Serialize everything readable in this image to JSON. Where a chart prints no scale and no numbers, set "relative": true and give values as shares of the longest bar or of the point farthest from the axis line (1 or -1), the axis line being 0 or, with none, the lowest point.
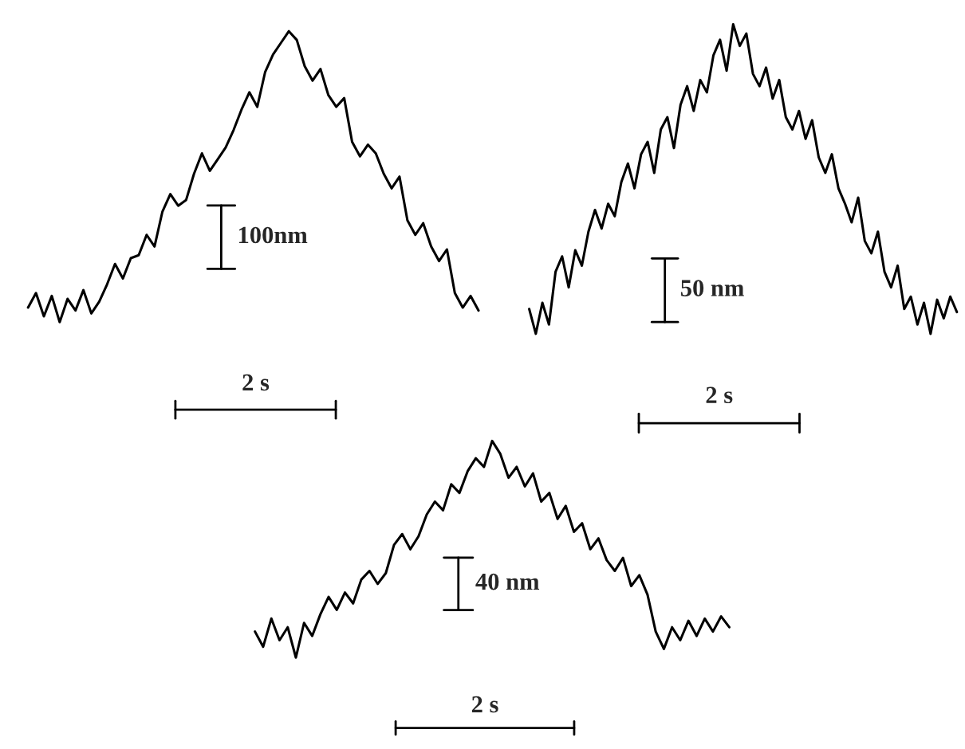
{
  "chart_data": [
    {
      "type": "line",
      "relative": true,
      "categories": [
        null,
        null,
        null,
        null,
        null,
        null,
        null,
        null,
        null,
        null,
        null,
        null,
        null,
        null,
        null,
        null,
        null,
        null,
        null,
        null,
        null,
        null,
        null,
        null,
        null,
        null,
        null,
        null,
        null,
        null,
        null,
        null,
        null,
        null,
        null,
        null,
        null,
        null,
        null,
        null,
        null,
        null,
        null,
        null,
        null,
        null,
        null,
        null,
        null,
        null,
        null,
        null,
        null,
        null,
        null,
        null,
        null,
        null
      ],
      "series": [
        {
          "color": "#000000",
          "values": [
            0.05,
            0.1,
            0.02,
            0.09,
            0.0,
            0.08,
            0.04,
            0.11,
            0.03,
            0.07,
            0.13,
            0.2,
            0.15,
            0.22,
            0.23,
            0.3,
            0.26,
            0.38,
            0.44,
            0.4,
            0.42,
            0.51,
            0.58,
            0.52,
            0.56,
            0.6,
            0.66,
            0.73,
            0.79,
            0.74,
            0.86,
            0.92,
            0.96,
            1.0,
            0.97,
            0.88,
            0.83,
            0.87,
            0.78,
            0.74,
            0.77,
            0.62,
            0.57,
            0.61,
            0.58,
            0.51,
            0.46,
            0.5,
            0.35,
            0.3,
            0.34,
            0.26,
            0.21,
            0.25,
            0.1,
            0.05,
            0.09,
            0.04
          ]
        }
      ],
      "annotations": [
        "100nm",
        "2 s"
      ]
    },
    {
      "type": "line",
      "relative": true,
      "categories": [
        null,
        null,
        null,
        null,
        null,
        null,
        null,
        null,
        null,
        null,
        null,
        null,
        null,
        null,
        null,
        null,
        null,
        null,
        null,
        null,
        null,
        null,
        null,
        null,
        null,
        null,
        null,
        null,
        null,
        null,
        null,
        null,
        null,
        null,
        null,
        null,
        null,
        null,
        null,
        null,
        null,
        null,
        null,
        null,
        null,
        null,
        null,
        null,
        null,
        null,
        null,
        null,
        null,
        null,
        null,
        null,
        null,
        null,
        null,
        null,
        null,
        null,
        null,
        null,
        null,
        null
      ],
      "series": [
        {
          "color": "#000000",
          "values": [
            0.08,
            0.0,
            0.1,
            0.03,
            0.2,
            0.25,
            0.15,
            0.27,
            0.22,
            0.33,
            0.4,
            0.34,
            0.42,
            0.38,
            0.49,
            0.55,
            0.47,
            0.58,
            0.62,
            0.52,
            0.66,
            0.7,
            0.6,
            0.74,
            0.8,
            0.72,
            0.82,
            0.78,
            0.9,
            0.95,
            0.85,
            1.0,
            0.93,
            0.97,
            0.84,
            0.8,
            0.86,
            0.76,
            0.82,
            0.7,
            0.66,
            0.72,
            0.63,
            0.69,
            0.57,
            0.52,
            0.58,
            0.47,
            0.42,
            0.36,
            0.44,
            0.3,
            0.26,
            0.33,
            0.2,
            0.15,
            0.22,
            0.08,
            0.12,
            0.03,
            0.1,
            0.0,
            0.11,
            0.05,
            0.12,
            0.07
          ]
        }
      ],
      "annotations": [
        "50 nm",
        "2 s"
      ]
    },
    {
      "type": "line",
      "relative": true,
      "categories": [
        null,
        null,
        null,
        null,
        null,
        null,
        null,
        null,
        null,
        null,
        null,
        null,
        null,
        null,
        null,
        null,
        null,
        null,
        null,
        null,
        null,
        null,
        null,
        null,
        null,
        null,
        null,
        null,
        null,
        null,
        null,
        null,
        null,
        null,
        null,
        null,
        null,
        null,
        null,
        null,
        null,
        null,
        null,
        null,
        null,
        null,
        null,
        null,
        null,
        null,
        null,
        null,
        null,
        null,
        null,
        null,
        null,
        null,
        null
      ],
      "series": [
        {
          "color": "#000000",
          "values": [
            0.12,
            0.05,
            0.18,
            0.08,
            0.14,
            0.0,
            0.16,
            0.1,
            0.2,
            0.28,
            0.22,
            0.3,
            0.25,
            0.36,
            0.4,
            0.34,
            0.39,
            0.52,
            0.57,
            0.5,
            0.56,
            0.66,
            0.72,
            0.68,
            0.8,
            0.76,
            0.86,
            0.92,
            0.88,
            1.0,
            0.94,
            0.83,
            0.88,
            0.79,
            0.85,
            0.72,
            0.76,
            0.64,
            0.7,
            0.58,
            0.62,
            0.5,
            0.55,
            0.45,
            0.4,
            0.46,
            0.33,
            0.38,
            0.29,
            0.12,
            0.04,
            0.14,
            0.08,
            0.17,
            0.1,
            0.18,
            0.12,
            0.19,
            0.14
          ]
        }
      ],
      "annotations": [
        "40 nm",
        "2 s"
      ]
    }
  ]
}
